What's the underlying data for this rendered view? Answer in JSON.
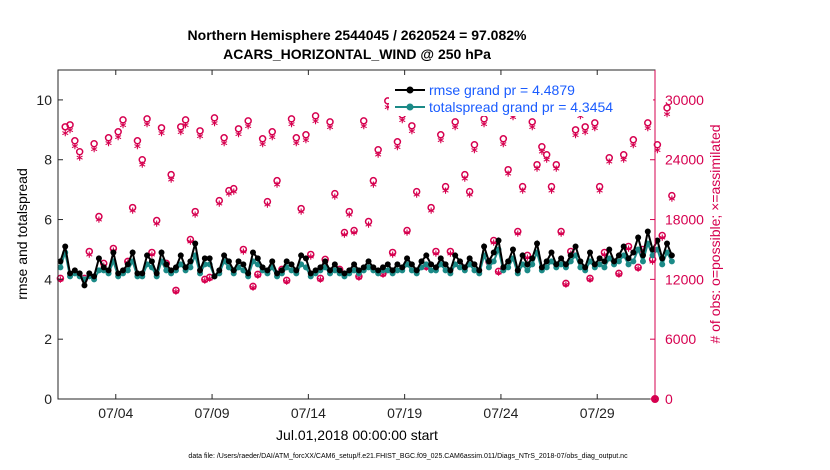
{
  "chart_data": {
    "type": "line",
    "title_line1": "Northern Hemisphere 2544045 / 2620524 = 97.082%",
    "title_line2": "ACARS_HORIZONTAL_WIND @ 250 hPa",
    "xlabel": "Jul.01,2018 00:00:00 start",
    "ylabel_left": "rmse and totalspread",
    "ylabel_right": "# of obs: o=possible; ×=assimilated",
    "x_tick_labels": [
      "07/04",
      "07/09",
      "07/14",
      "07/19",
      "07/24",
      "07/29"
    ],
    "x_tick_days": [
      3,
      8,
      13,
      18,
      23,
      28
    ],
    "xlim_days": [
      0,
      31
    ],
    "ylim_left": [
      0,
      11
    ],
    "left_ticks": [
      "0",
      "2",
      "4",
      "6",
      "8",
      "10"
    ],
    "left_tick_values": [
      0,
      2,
      4,
      6,
      8,
      10
    ],
    "ylim_right": [
      0,
      33000
    ],
    "right_ticks": [
      "0",
      "6000",
      "12000",
      "18000",
      "24000",
      "30000"
    ],
    "right_tick_values": [
      0,
      6000,
      12000,
      18000,
      24000,
      30000
    ],
    "legend_location": "top-right",
    "series": [
      {
        "name": "rmse grand pr = 4.4879",
        "axis": "left",
        "color": "#000000",
        "values": [
          4.6,
          5.1,
          4.2,
          4.3,
          4.2,
          3.8,
          4.2,
          4.1,
          4.7,
          4.4,
          4.3,
          4.9,
          4.2,
          4.3,
          4.5,
          4.9,
          4.2,
          4.2,
          4.8,
          4.6,
          4.2,
          4.9,
          4.5,
          4.3,
          4.4,
          4.8,
          4.4,
          4.6,
          5.2,
          4.3,
          4.7,
          4.7,
          4.1,
          4.3,
          4.8,
          4.6,
          4.3,
          4.6,
          4.5,
          4.2,
          4.9,
          4.7,
          4.4,
          4.3,
          4.6,
          4.2,
          4.3,
          4.6,
          4.5,
          4.3,
          4.8,
          4.7,
          4.2,
          4.3,
          4.4,
          4.6,
          4.3,
          4.5,
          4.3,
          4.2,
          4.3,
          4.5,
          4.3,
          4.4,
          4.6,
          4.4,
          4.3,
          4.4,
          4.5,
          4.3,
          4.5,
          4.4,
          4.7,
          4.5,
          4.3,
          4.6,
          4.8,
          4.5,
          4.4,
          4.7,
          4.5,
          4.3,
          4.8,
          4.6,
          4.4,
          4.7,
          4.5,
          4.3,
          5.1,
          4.6,
          4.9,
          5.3,
          4.4,
          4.6,
          5.0,
          4.3,
          4.8,
          4.5,
          4.7,
          5.2,
          4.4,
          4.6,
          4.9,
          4.5,
          4.7,
          4.5,
          4.8,
          5.1,
          4.6,
          4.4,
          4.9,
          4.5,
          4.7,
          4.6,
          5.0,
          4.6,
          4.8,
          5.1,
          4.7,
          4.9,
          5.4,
          4.8,
          5.6,
          5.0,
          5.3,
          4.7,
          5.2,
          4.8
        ]
      },
      {
        "name": "totalspread grand pr = 4.3454",
        "axis": "left",
        "color": "#1b8a87",
        "values": [
          4.4,
          4.9,
          4.1,
          4.2,
          4.1,
          4.0,
          4.1,
          4.0,
          4.3,
          4.3,
          4.2,
          4.6,
          4.1,
          4.2,
          4.3,
          4.6,
          4.1,
          4.1,
          4.5,
          4.4,
          4.1,
          4.6,
          4.3,
          4.2,
          4.3,
          4.5,
          4.3,
          4.4,
          4.8,
          4.2,
          4.5,
          4.5,
          4.1,
          4.2,
          4.6,
          4.4,
          4.2,
          4.4,
          4.3,
          4.1,
          4.6,
          4.5,
          4.3,
          4.2,
          4.4,
          4.1,
          4.2,
          4.4,
          4.3,
          4.2,
          4.5,
          4.4,
          4.1,
          4.2,
          4.3,
          4.4,
          4.2,
          4.3,
          4.2,
          4.1,
          4.2,
          4.3,
          4.2,
          4.3,
          4.4,
          4.3,
          4.2,
          4.3,
          4.3,
          4.2,
          4.3,
          4.3,
          4.5,
          4.3,
          4.2,
          4.4,
          4.5,
          4.3,
          4.3,
          4.5,
          4.3,
          4.2,
          4.5,
          4.4,
          4.3,
          4.5,
          4.3,
          4.2,
          4.8,
          4.4,
          4.6,
          5.0,
          4.3,
          4.4,
          4.7,
          4.2,
          4.5,
          4.3,
          4.5,
          4.9,
          4.3,
          4.4,
          4.6,
          4.4,
          4.5,
          4.4,
          4.6,
          4.8,
          4.4,
          4.3,
          4.6,
          4.4,
          4.5,
          4.4,
          4.7,
          4.5,
          4.6,
          4.8,
          4.5,
          4.6,
          5.0,
          4.6,
          5.2,
          4.8,
          5.0,
          4.5,
          4.9,
          4.6
        ]
      },
      {
        "name": "possible obs (o)",
        "axis": "right",
        "color": "#d6004f",
        "values": [
          12100,
          27300,
          27500,
          25900,
          24800,
          12100,
          14800,
          25600,
          18300,
          13600,
          26200,
          15100,
          26800,
          28000,
          13800,
          19200,
          25900,
          24000,
          28100,
          14700,
          17900,
          27200,
          13600,
          22500,
          10900,
          27300,
          28000,
          16000,
          18800,
          26900,
          12000,
          12200,
          28200,
          19900,
          26200,
          20900,
          21100,
          27100,
          15000,
          27900,
          11300,
          12500,
          26100,
          19800,
          26800,
          21900,
          13000,
          11900,
          28100,
          26200,
          19100,
          26500,
          14500,
          28400,
          12100,
          14000,
          27800,
          20600,
          13000,
          16700,
          18800,
          16900,
          12300,
          27900,
          17800,
          21900,
          25000,
          12600,
          29900,
          14700,
          25800,
          28500,
          16900,
          27400,
          20800,
          29600,
          13300,
          19200,
          14800,
          26500,
          21300,
          14800,
          27800,
          13400,
          22500,
          20800,
          25500,
          29700,
          28100,
          13800,
          15900,
          12800,
          26100,
          23000,
          28900,
          16800,
          21300,
          14400,
          27800,
          23500,
          25300,
          24500,
          21300,
          23500,
          16800,
          11600,
          14800,
          27000,
          29000,
          27300,
          12100,
          27700,
          21300,
          14700,
          24200,
          29400,
          12600,
          24500,
          15300,
          26000,
          13200,
          15000,
          27700,
          14000,
          25500,
          16400,
          29200,
          20400
        ]
      },
      {
        "name": "assimilated obs (×)",
        "axis": "right",
        "color": "#d6004f",
        "values": [
          11800,
          26500,
          26800,
          25200,
          24000,
          11800,
          14300,
          24900,
          17800,
          13200,
          25500,
          14700,
          26100,
          27300,
          13500,
          18700,
          25200,
          23300,
          27400,
          14300,
          17400,
          26500,
          13200,
          21800,
          10600,
          26600,
          27300,
          15600,
          18300,
          26200,
          11700,
          11900,
          27500,
          19400,
          25500,
          20400,
          20600,
          26400,
          14600,
          27200,
          11000,
          12200,
          25400,
          19300,
          26100,
          21300,
          12700,
          11600,
          27400,
          25500,
          18600,
          25800,
          14100,
          27700,
          11800,
          13600,
          27100,
          20100,
          12700,
          16300,
          18300,
          16500,
          12000,
          27200,
          17300,
          21300,
          24300,
          12300,
          29100,
          14300,
          25100,
          27800,
          16500,
          26700,
          20300,
          28800,
          13000,
          18700,
          14400,
          25800,
          20700,
          14400,
          27100,
          13100,
          21900,
          20300,
          24800,
          28900,
          27400,
          13500,
          15500,
          12500,
          25400,
          22400,
          28100,
          16400,
          20700,
          14000,
          27100,
          22900,
          24600,
          23800,
          20700,
          22900,
          16400,
          11300,
          14400,
          26300,
          28200,
          26600,
          11800,
          27000,
          20700,
          14300,
          23600,
          28600,
          12300,
          23800,
          14900,
          25300,
          12900,
          14600,
          27000,
          13600,
          24800,
          16000,
          28400,
          19900
        ]
      }
    ],
    "extra_right_point": {
      "day": 31,
      "value": 0
    }
  },
  "footer": "data file: /Users/raeder/DAI/ATM_forcXX/CAM6_setup/f.e21.FHIST_BGC.f09_025.CAM6assim.011/Diags_NTrS_2018-07/obs_diag_output.nc"
}
